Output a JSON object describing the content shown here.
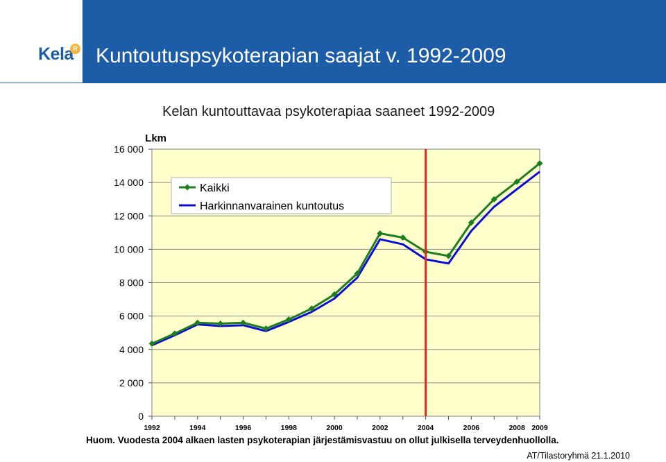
{
  "header": {
    "title": "Kuntoutuspsykoterapian saajat v. 1992-2009",
    "brand_color": "#1d5ca6"
  },
  "logo": {
    "text": "Kela",
    "mark": "R"
  },
  "chart_data": {
    "type": "line",
    "title": "Kelan kuntouttavaa psykoterapiaa saaneet 1992-2009",
    "ylabel": "Lkm",
    "xlabel": "",
    "x": [
      1992,
      1993,
      1994,
      1995,
      1996,
      1997,
      1998,
      1999,
      2000,
      2001,
      2002,
      2003,
      2004,
      2005,
      2006,
      2007,
      2008,
      2009
    ],
    "x_tick_labels": [
      "1992",
      "1994",
      "1996",
      "1998",
      "2000",
      "2002",
      "2004",
      "2006",
      "2008",
      "2009"
    ],
    "x_tick_values": [
      1992,
      1994,
      1996,
      1998,
      2000,
      2002,
      2004,
      2006,
      2008,
      2009
    ],
    "ylim": [
      0,
      16000
    ],
    "y_tick_values": [
      0,
      2000,
      4000,
      6000,
      8000,
      10000,
      12000,
      14000,
      16000
    ],
    "y_tick_labels": [
      "0",
      "2 000",
      "4 000",
      "6 000",
      "8 000",
      "10 000",
      "12 000",
      "14 000",
      "16 000"
    ],
    "grid": "horizontal",
    "legend_position": "top-left",
    "background": "#ffffcc",
    "series": [
      {
        "name": "Kaikki",
        "color": "#1e7d1e",
        "marker": "diamond",
        "values": [
          4350,
          4950,
          5600,
          5550,
          5600,
          5250,
          5800,
          6450,
          7300,
          8550,
          10950,
          10700,
          9850,
          9600,
          11600,
          13000,
          14050,
          15150
        ]
      },
      {
        "name": "Harkinnanvarainen kuntoutus",
        "color": "#0d0dd8",
        "marker": "none",
        "values": [
          4250,
          4850,
          5500,
          5400,
          5450,
          5100,
          5650,
          6250,
          7050,
          8300,
          10600,
          10300,
          9400,
          9150,
          11100,
          12550,
          13600,
          14650
        ]
      }
    ],
    "annotations": [
      {
        "type": "vertical-line",
        "x": 2004,
        "color": "#e8231d"
      }
    ]
  },
  "footnote": "Huom. Vuodesta 2004 alkaen lasten psykoterapian järjestämisvastuu on ollut julkisella terveydenhuollolla.",
  "source": "AT/Tilastoryhmä 21.1.2010"
}
